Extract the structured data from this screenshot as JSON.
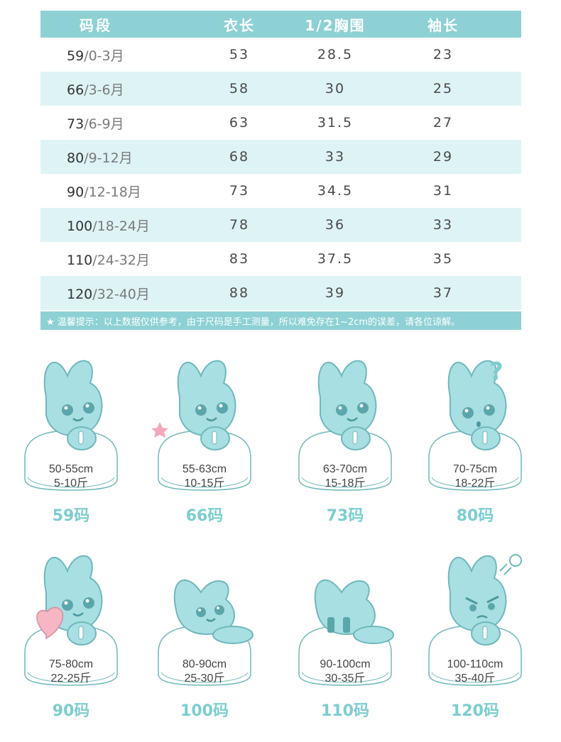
{
  "table": {
    "headers": [
      "码段",
      "衣长",
      "1/2胸围",
      "袖长"
    ],
    "rows": [
      {
        "size": "59",
        "age": "/0-3月",
        "length": "53",
        "chest": "28.5",
        "sleeve": "23"
      },
      {
        "size": "66",
        "age": "/3-6月",
        "length": "58",
        "chest": "30",
        "sleeve": "25"
      },
      {
        "size": "73",
        "age": "/6-9月",
        "length": "63",
        "chest": "31.5",
        "sleeve": "27"
      },
      {
        "size": "80",
        "age": "/9-12月",
        "length": "68",
        "chest": "33",
        "sleeve": "29"
      },
      {
        "size": "90",
        "age": "/12-18月",
        "length": "73",
        "chest": "34.5",
        "sleeve": "31"
      },
      {
        "size": "100",
        "age": "/18-24月",
        "length": "78",
        "chest": "36",
        "sleeve": "33"
      },
      {
        "size": "110",
        "age": "/24-32月",
        "length": "83",
        "chest": "37.5",
        "sleeve": "35"
      },
      {
        "size": "120",
        "age": "/32-40月",
        "length": "88",
        "chest": "39",
        "sleeve": "37"
      }
    ],
    "note": "★ 温馨提示：以上数据仅供参考，由于尺码是手工测量，所以难免存在1~2cm的误差，请各位谅解。"
  },
  "sizes": [
    {
      "height": "50-55cm",
      "weight": "5-10斤",
      "label": "59码",
      "pose": "sitting"
    },
    {
      "height": "55-63cm",
      "weight": "10-15斤",
      "label": "66码",
      "pose": "star"
    },
    {
      "height": "63-70cm",
      "weight": "15-18斤",
      "label": "73码",
      "pose": "sitting"
    },
    {
      "height": "70-75cm",
      "weight": "18-22斤",
      "label": "80码",
      "pose": "question"
    },
    {
      "height": "75-80cm",
      "weight": "22-25斤",
      "label": "90码",
      "pose": "heart"
    },
    {
      "height": "80-90cm",
      "weight": "25-30斤",
      "label": "100码",
      "pose": "lying"
    },
    {
      "height": "90-100cm",
      "weight": "30-35斤",
      "label": "110码",
      "pose": "crying"
    },
    {
      "height": "100-110cm",
      "weight": "35-40斤",
      "label": "120码",
      "pose": "angry"
    }
  ],
  "colors": {
    "accent": "#8dd1d4",
    "alt_row": "#def3f4",
    "bunny": "#a8dfe2",
    "outline": "#6fb8bc",
    "label": "#7ccdd0",
    "heart": "#f6b6c4"
  },
  "icons": {
    "question": "question-mark-icon",
    "star": "star-icon",
    "heart": "heart-icon",
    "steam": "steam-puff-icon"
  }
}
